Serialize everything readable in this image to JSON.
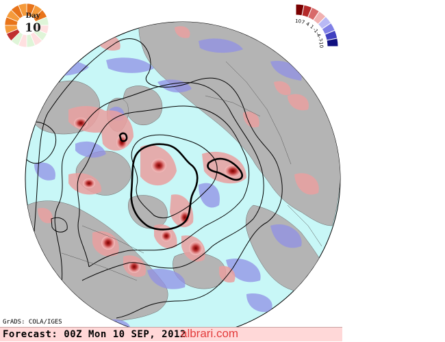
{
  "day_badge": {
    "label": "Day",
    "number": "10"
  },
  "legend": {
    "ticks": [
      "10",
      "7",
      "4",
      "1",
      "-1",
      "-4",
      "-7",
      "-10"
    ],
    "colors": [
      "#7a0000",
      "#b52a2a",
      "#d86a6a",
      "#f0b0b0",
      "#b9b9f5",
      "#8080e6",
      "#4040c0",
      "#101080"
    ]
  },
  "credit": "GrADS: COLA/IGES",
  "forecast": "Forecast: 00Z Mon 10 SEP, 2012",
  "watermark": "albrari.com",
  "colors": {
    "ocean": "#c8f7f7",
    "land": "#b4b4b4",
    "positive_anomaly": "#e09090",
    "negative_anomaly": "#9090e6",
    "contour": "#000000"
  }
}
